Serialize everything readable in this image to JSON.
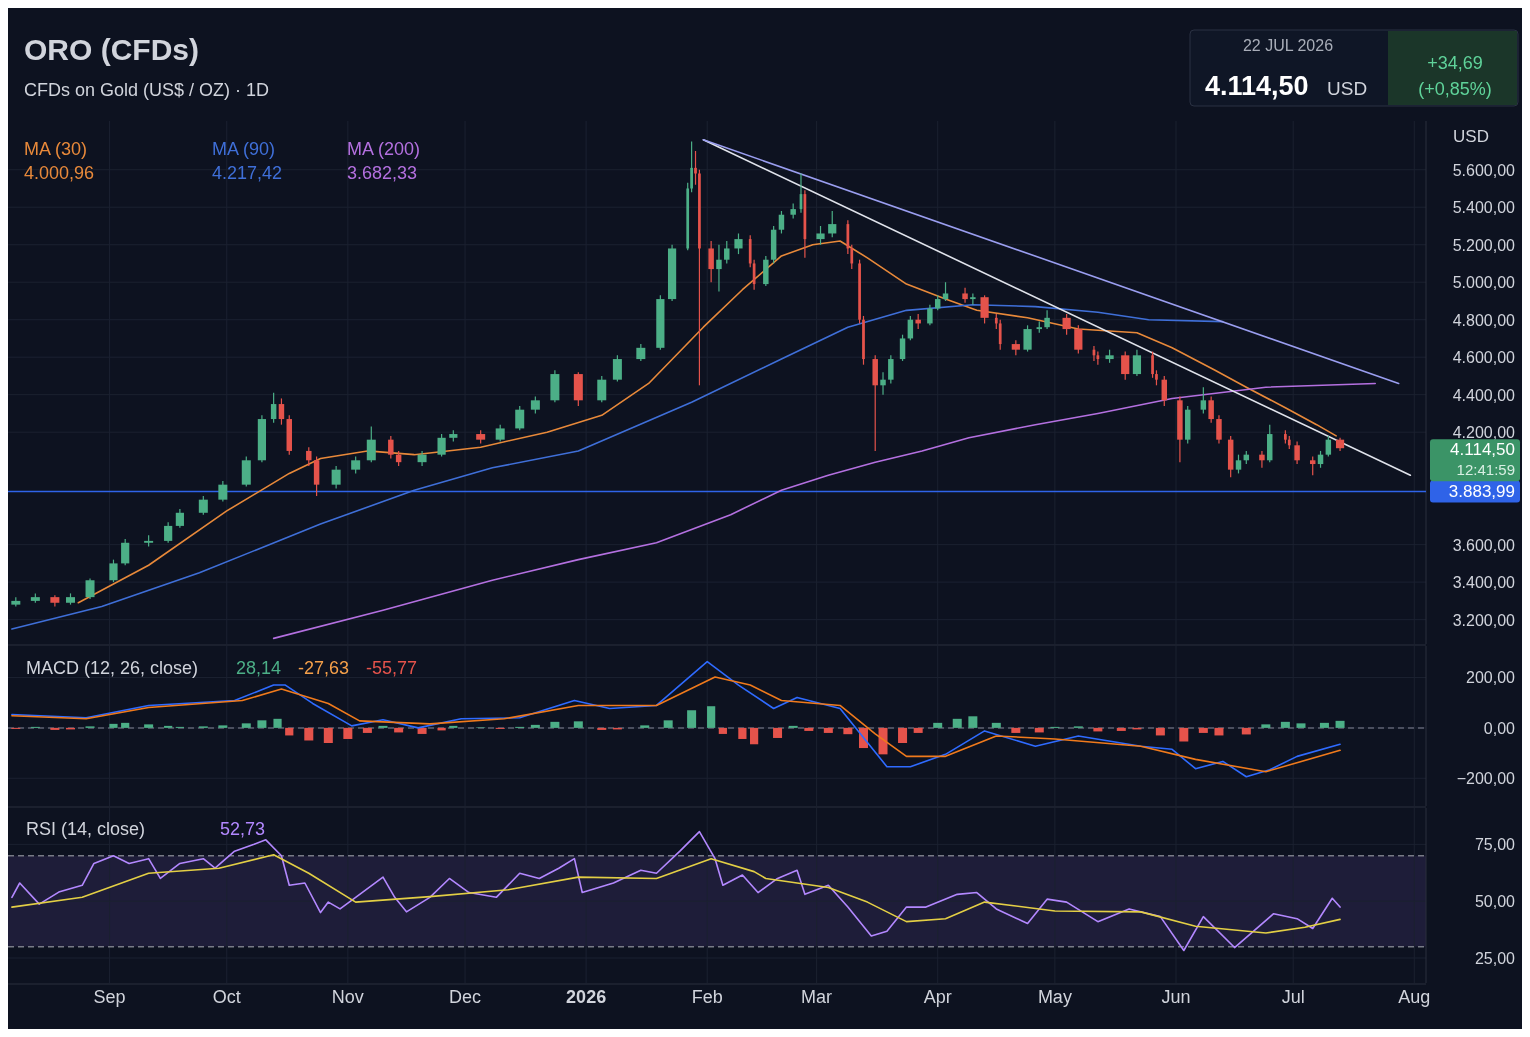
{
  "chart_data": [
    {
      "type": "candlestick",
      "title": "ORO (CFDs)",
      "subtitle": "CFDs on Gold (US$ / OZ) · 1D",
      "ylabel": "USD",
      "annotations": [
        "22 JUL 2026",
        "4.114,50",
        "USD",
        "+34,69",
        "(+0,85%)",
        "4.114,50",
        "12:41:59",
        "4.000,96",
        "4.217,42",
        "3.682,33"
      ],
      "xlim": [
        "2025-08-06",
        "2026-08-04"
      ],
      "xticks": [
        {
          "value": "2025-09-01",
          "label": null
        },
        {
          "value": "2025-10-01",
          "label": null
        },
        {
          "value": "2025-11-01",
          "label": null
        },
        {
          "value": "2025-12-01",
          "label": null
        },
        {
          "value": "2026-01-01",
          "label": null
        },
        {
          "value": "2026-02-01",
          "label": null
        },
        {
          "value": "2026-03-01",
          "label": null
        },
        {
          "value": "2026-04-01",
          "label": null
        },
        {
          "value": "2026-05-01",
          "label": null
        },
        {
          "value": "2026-06-01",
          "label": null
        },
        {
          "value": "2026-07-01",
          "label": null
        },
        {
          "value": "2026-08-01",
          "label": null
        }
      ],
      "ylim": [
        3070,
        5860
      ],
      "yticks": [
        {
          "value": 3200,
          "label": "3.200,00"
        },
        {
          "value": 3400,
          "label": "3.400,00"
        },
        {
          "value": 3600,
          "label": "3.600,00"
        },
        {
          "value": 4200,
          "label": "4.200,00"
        },
        {
          "value": 4400,
          "label": "4.400,00"
        },
        {
          "value": 4600,
          "label": "4.600,00"
        },
        {
          "value": 4800,
          "label": "4.800,00"
        },
        {
          "value": 5000,
          "label": "5.000,00"
        },
        {
          "value": 5200,
          "label": "5.200,00"
        },
        {
          "value": 5400,
          "label": "5.400,00"
        },
        {
          "value": 5600,
          "label": "5.600,00"
        }
      ],
      "tick_labels": "y",
      "grid": true,
      "legend": "top left",
      "ref_lines": [
        {
          "axis": "y",
          "value": 3883.99,
          "label": "3.883,99",
          "color": "#2f63e8"
        }
      ],
      "x": [
        "2025-08-08",
        "2025-08-13",
        "2025-08-18",
        "2025-08-22",
        "2025-08-27",
        "2025-09-02",
        "2025-09-05",
        "2025-09-11",
        "2025-09-16",
        "2025-09-19",
        "2025-09-25",
        "2025-09-30",
        "2025-10-06",
        "2025-10-10",
        "2025-10-13",
        "2025-10-15",
        "2025-10-17",
        "2025-10-22",
        "2025-10-24",
        "2025-10-29",
        "2025-11-03",
        "2025-11-07",
        "2025-11-12",
        "2025-11-14",
        "2025-11-20",
        "2025-11-25",
        "2025-11-28",
        "2025-12-05",
        "2025-12-10",
        "2025-12-15",
        "2025-12-19",
        "2025-12-24",
        "2025-12-30",
        "2026-01-05",
        "2026-01-09",
        "2026-01-15",
        "2026-01-20",
        "2026-01-23",
        "2026-01-27",
        "2026-01-28",
        "2026-01-29",
        "2026-01-30",
        "2026-02-02",
        "2026-02-04",
        "2026-02-06",
        "2026-02-09",
        "2026-02-12",
        "2026-02-13",
        "2026-02-16",
        "2026-02-18",
        "2026-02-20",
        "2026-02-23",
        "2026-02-25",
        "2026-02-26",
        "2026-03-02",
        "2026-03-05",
        "2026-03-09",
        "2026-03-10",
        "2026-03-12",
        "2026-03-13",
        "2026-03-16",
        "2026-03-18",
        "2026-03-20",
        "2026-03-23",
        "2026-03-25",
        "2026-03-27",
        "2026-03-30",
        "2026-04-01",
        "2026-04-03",
        "2026-04-08",
        "2026-04-10",
        "2026-04-13",
        "2026-04-16",
        "2026-04-17",
        "2026-04-21",
        "2026-04-24",
        "2026-04-27",
        "2026-04-29",
        "2026-05-04",
        "2026-05-07",
        "2026-05-11",
        "2026-05-12",
        "2026-05-15",
        "2026-05-19",
        "2026-05-22",
        "2026-05-26",
        "2026-05-27",
        "2026-05-29",
        "2026-06-02",
        "2026-06-04",
        "2026-06-08",
        "2026-06-10",
        "2026-06-12",
        "2026-06-15",
        "2026-06-17",
        "2026-06-19",
        "2026-06-23",
        "2026-06-25",
        "2026-06-29",
        "2026-06-30",
        "2026-07-02",
        "2026-07-06",
        "2026-07-08",
        "2026-07-10",
        "2026-07-13"
      ],
      "ohlc": [
        [
          3280,
          3320,
          3270,
          3300
        ],
        [
          3300,
          3340,
          3290,
          3320
        ],
        [
          3320,
          3330,
          3270,
          3290
        ],
        [
          3290,
          3340,
          3280,
          3320
        ],
        [
          3320,
          3420,
          3310,
          3410
        ],
        [
          3410,
          3520,
          3400,
          3500
        ],
        [
          3500,
          3630,
          3490,
          3610
        ],
        [
          3610,
          3650,
          3590,
          3620
        ],
        [
          3620,
          3720,
          3610,
          3700
        ],
        [
          3700,
          3790,
          3690,
          3770
        ],
        [
          3770,
          3860,
          3760,
          3840
        ],
        [
          3840,
          3940,
          3830,
          3920
        ],
        [
          3920,
          4070,
          3910,
          4050
        ],
        [
          4050,
          4290,
          4040,
          4270
        ],
        [
          4270,
          4410,
          4250,
          4350
        ],
        [
          4350,
          4380,
          4240,
          4270
        ],
        [
          4270,
          4290,
          4080,
          4100
        ],
        [
          4100,
          4120,
          4020,
          4050
        ],
        [
          4050,
          4070,
          3860,
          3920
        ],
        [
          3920,
          4020,
          3900,
          4000
        ],
        [
          4000,
          4070,
          3980,
          4050
        ],
        [
          4050,
          4230,
          4040,
          4160
        ],
        [
          4160,
          4180,
          4060,
          4080
        ],
        [
          4080,
          4100,
          4020,
          4040
        ],
        [
          4040,
          4100,
          4020,
          4080
        ],
        [
          4080,
          4190,
          4070,
          4170
        ],
        [
          4170,
          4210,
          4150,
          4190
        ],
        [
          4190,
          4210,
          4140,
          4160
        ],
        [
          4160,
          4240,
          4150,
          4220
        ],
        [
          4220,
          4340,
          4210,
          4320
        ],
        [
          4320,
          4390,
          4300,
          4370
        ],
        [
          4370,
          4530,
          4360,
          4510
        ],
        [
          4510,
          4520,
          4340,
          4370
        ],
        [
          4370,
          4500,
          4360,
          4480
        ],
        [
          4480,
          4610,
          4470,
          4590
        ],
        [
          4590,
          4670,
          4580,
          4650
        ],
        [
          4650,
          4930,
          4640,
          4910
        ],
        [
          4910,
          5200,
          4900,
          5180
        ],
        [
          5180,
          5530,
          5170,
          5500
        ],
        [
          5500,
          5750,
          5480,
          5610
        ],
        [
          5610,
          5700,
          5520,
          5580
        ],
        [
          5580,
          5600,
          4450,
          5180
        ],
        [
          5180,
          5220,
          5000,
          5070
        ],
        [
          5070,
          5200,
          4950,
          5120
        ],
        [
          5120,
          5220,
          5100,
          5180
        ],
        [
          5180,
          5260,
          5150,
          5230
        ],
        [
          5230,
          5250,
          5080,
          5100
        ],
        [
          5100,
          5120,
          4960,
          4990
        ],
        [
          4990,
          5140,
          4980,
          5120
        ],
        [
          5120,
          5300,
          5100,
          5280
        ],
        [
          5280,
          5380,
          5260,
          5360
        ],
        [
          5360,
          5420,
          5340,
          5390
        ],
        [
          5390,
          5580,
          5370,
          5470
        ],
        [
          5470,
          5490,
          5130,
          5230
        ],
        [
          5230,
          5300,
          5200,
          5260
        ],
        [
          5260,
          5380,
          5240,
          5310
        ],
        [
          5310,
          5330,
          5150,
          5180
        ],
        [
          5180,
          5200,
          5070,
          5100
        ],
        [
          5100,
          5120,
          4780,
          4800
        ],
        [
          4800,
          4820,
          4560,
          4590
        ],
        [
          4590,
          4610,
          4100,
          4450
        ],
        [
          4450,
          4520,
          4400,
          4480
        ],
        [
          4480,
          4610,
          4460,
          4590
        ],
        [
          4590,
          4720,
          4580,
          4700
        ],
        [
          4700,
          4820,
          4690,
          4800
        ],
        [
          4800,
          4830,
          4750,
          4780
        ],
        [
          4780,
          4880,
          4770,
          4860
        ],
        [
          4860,
          4930,
          4850,
          4910
        ],
        [
          4910,
          5000,
          4900,
          4940
        ],
        [
          4940,
          4970,
          4890,
          4910
        ],
        [
          4910,
          4940,
          4880,
          4920
        ],
        [
          4920,
          4930,
          4780,
          4810
        ],
        [
          4810,
          4830,
          4750,
          4780
        ],
        [
          4780,
          4800,
          4640,
          4670
        ],
        [
          4670,
          4690,
          4610,
          4640
        ],
        [
          4640,
          4770,
          4630,
          4750
        ],
        [
          4750,
          4790,
          4730,
          4760
        ],
        [
          4760,
          4850,
          4750,
          4810
        ],
        [
          4810,
          4830,
          4720,
          4750
        ],
        [
          4750,
          4770,
          4620,
          4640
        ],
        [
          4640,
          4660,
          4580,
          4610
        ],
        [
          4610,
          4630,
          4560,
          4590
        ],
        [
          4590,
          4640,
          4570,
          4610
        ],
        [
          4610,
          4630,
          4480,
          4510
        ],
        [
          4510,
          4640,
          4500,
          4610
        ],
        [
          4610,
          4630,
          4490,
          4510
        ],
        [
          4510,
          4530,
          4450,
          4480
        ],
        [
          4480,
          4500,
          4340,
          4370
        ],
        [
          4370,
          4390,
          4040,
          4160
        ],
        [
          4160,
          4340,
          4140,
          4320
        ],
        [
          4320,
          4440,
          4300,
          4370
        ],
        [
          4370,
          4390,
          4250,
          4270
        ],
        [
          4270,
          4290,
          4140,
          4160
        ],
        [
          4160,
          4180,
          3960,
          4000
        ],
        [
          4000,
          4080,
          3980,
          4050
        ],
        [
          4050,
          4100,
          4030,
          4080
        ],
        [
          4080,
          4100,
          4010,
          4050
        ],
        [
          4050,
          4240,
          4040,
          4190
        ],
        [
          4190,
          4210,
          4140,
          4160
        ],
        [
          4160,
          4180,
          4110,
          4130
        ],
        [
          4130,
          4150,
          4030,
          4050
        ],
        [
          4050,
          4070,
          3970,
          4030
        ],
        [
          4030,
          4100,
          4010,
          4080
        ],
        [
          4080,
          4180,
          4070,
          4160
        ],
        [
          4160,
          4170,
          4100,
          4114.5
        ]
      ],
      "colors": [
        "#4caf87",
        "#4caf87",
        "#e5534b",
        "#4caf87",
        "#4caf87",
        "#4caf87",
        "#4caf87",
        "#4caf87",
        "#4caf87",
        "#4caf87",
        "#4caf87",
        "#4caf87",
        "#4caf87",
        "#4caf87",
        "#4caf87",
        "#e5534b",
        "#e5534b",
        "#e5534b",
        "#e5534b",
        "#4caf87",
        "#4caf87",
        "#4caf87",
        "#e5534b",
        "#e5534b",
        "#4caf87",
        "#4caf87",
        "#4caf87",
        "#e5534b",
        "#4caf87",
        "#4caf87",
        "#4caf87",
        "#4caf87",
        "#e5534b",
        "#4caf87",
        "#4caf87",
        "#4caf87",
        "#4caf87",
        "#4caf87",
        "#4caf87",
        "#4caf87",
        "#e5534b",
        "#e5534b",
        "#e5534b",
        "#4caf87",
        "#4caf87",
        "#4caf87",
        "#e5534b",
        "#e5534b",
        "#4caf87",
        "#4caf87",
        "#4caf87",
        "#4caf87",
        "#4caf87",
        "#e5534b",
        "#4caf87",
        "#4caf87",
        "#e5534b",
        "#e5534b",
        "#e5534b",
        "#e5534b",
        "#e5534b",
        "#4caf87",
        "#4caf87",
        "#4caf87",
        "#4caf87",
        "#e5534b",
        "#4caf87",
        "#4caf87",
        "#4caf87",
        "#e5534b",
        "#4caf87",
        "#e5534b",
        "#e5534b",
        "#e5534b",
        "#e5534b",
        "#4caf87",
        "#4caf87",
        "#4caf87",
        "#e5534b",
        "#e5534b",
        "#e5534b",
        "#e5534b",
        "#4caf87",
        "#e5534b",
        "#4caf87",
        "#e5534b",
        "#e5534b",
        "#e5534b",
        "#e5534b",
        "#4caf87",
        "#4caf87",
        "#e5534b",
        "#e5534b",
        "#e5534b",
        "#4caf87",
        "#4caf87",
        "#e5534b",
        "#4caf87",
        "#e5534b",
        "#e5534b",
        "#e5534b",
        "#e5534b",
        "#4caf87",
        "#4caf87",
        "#e5534b"
      ],
      "series": [
        {
          "type": "line",
          "name": "MA (30)",
          "color": "#e8893a",
          "x": [
            "2025-08-24",
            "2025-09-11",
            "2025-10-01",
            "2025-10-17",
            "2025-10-25",
            "2025-11-06",
            "2025-11-18",
            "2025-12-05",
            "2025-12-22",
            "2026-01-05",
            "2026-01-17",
            "2026-01-31",
            "2026-02-10",
            "2026-02-20",
            "2026-02-28",
            "2026-03-07",
            "2026-03-14",
            "2026-03-24",
            "2026-04-03",
            "2026-04-11",
            "2026-04-24",
            "2026-05-07",
            "2026-05-22",
            "2026-05-31",
            "2026-06-11",
            "2026-06-19",
            "2026-06-29",
            "2026-07-07",
            "2026-07-12"
          ],
          "values": [
            3290,
            3490,
            3780,
            3980,
            4060,
            4100,
            4080,
            4120,
            4200,
            4290,
            4460,
            4760,
            4960,
            5140,
            5200,
            5220,
            5130,
            4990,
            4910,
            4850,
            4810,
            4750,
            4730,
            4650,
            4530,
            4440,
            4330,
            4240,
            4180
          ]
        },
        {
          "type": "line",
          "name": "MA (90)",
          "color": "#3f6fd8",
          "x": [
            "2025-08-07",
            "2025-08-30",
            "2025-09-24",
            "2025-10-25",
            "2025-11-18",
            "2025-12-08",
            "2025-12-30",
            "2026-01-28",
            "2026-02-20",
            "2026-03-09",
            "2026-03-24",
            "2026-04-10",
            "2026-04-26",
            "2026-05-12",
            "2026-05-25",
            "2026-06-13"
          ],
          "values": [
            3150,
            3270,
            3450,
            3710,
            3890,
            4010,
            4100,
            4360,
            4590,
            4760,
            4850,
            4880,
            4870,
            4840,
            4800,
            4790
          ]
        },
        {
          "type": "line",
          "name": "MA (200)",
          "color": "#b470e0",
          "x": [
            "2025-10-13",
            "2025-11-10",
            "2025-12-08",
            "2025-12-30",
            "2026-01-19",
            "2026-02-07",
            "2026-02-20",
            "2026-03-04",
            "2026-03-16",
            "2026-03-28",
            "2026-04-09",
            "2026-04-26",
            "2026-05-12",
            "2026-05-31",
            "2026-06-24",
            "2026-07-22"
          ],
          "values": [
            3100,
            3250,
            3410,
            3520,
            3610,
            3760,
            3890,
            3970,
            4040,
            4100,
            4170,
            4240,
            4300,
            4380,
            4440,
            4460
          ]
        },
        {
          "type": "line",
          "color": "#e0e3eb",
          "x": [
            "2026-01-31",
            "2026-07-31"
          ],
          "values": [
            5760,
            3970
          ]
        },
        {
          "type": "line",
          "color": "#9a9ef0",
          "x": [
            "2026-01-31",
            "2026-07-28"
          ],
          "values": [
            5760,
            4460
          ]
        }
      ]
    },
    {
      "type": "line",
      "title": "MACD (12, 26, close)",
      "annotations": [
        "28,14",
        "-27,63",
        "-55,77"
      ],
      "xlim": [
        "2025-08-06",
        "2026-08-04"
      ],
      "xticks": [
        {
          "value": "2025-09-01",
          "label": null
        },
        {
          "value": "2025-10-01",
          "label": null
        },
        {
          "value": "2025-11-01",
          "label": null
        },
        {
          "value": "2025-12-01",
          "label": null
        },
        {
          "value": "2026-01-01",
          "label": null
        },
        {
          "value": "2026-02-01",
          "label": null
        },
        {
          "value": "2026-03-01",
          "label": null
        },
        {
          "value": "2026-04-01",
          "label": null
        },
        {
          "value": "2026-05-01",
          "label": null
        },
        {
          "value": "2026-06-01",
          "label": null
        },
        {
          "value": "2026-07-01",
          "label": null
        },
        {
          "value": "2026-08-01",
          "label": null
        }
      ],
      "ylim": [
        -310,
        325
      ],
      "yticks": [
        {
          "value": -200,
          "label": "−200,00"
        },
        {
          "value": 0,
          "label": "0,00"
        },
        {
          "value": 200,
          "label": "200,00"
        }
      ],
      "tick_labels": "y",
      "grid": true,
      "ref_lines": [
        {
          "axis": "y",
          "value": 0,
          "color": "#5d6272",
          "line_style": "dashed"
        }
      ],
      "series": [
        {
          "type": "bar",
          "x": [
            "2025-08-08",
            "2025-08-13",
            "2025-08-18",
            "2025-08-22",
            "2025-08-27",
            "2025-09-02",
            "2025-09-05",
            "2025-09-11",
            "2025-09-16",
            "2025-09-19",
            "2025-09-25",
            "2025-09-30",
            "2025-10-06",
            "2025-10-10",
            "2025-10-14",
            "2025-10-17",
            "2025-10-22",
            "2025-10-27",
            "2025-11-01",
            "2025-11-06",
            "2025-11-10",
            "2025-11-14",
            "2025-11-20",
            "2025-11-25",
            "2025-11-28",
            "2025-12-05",
            "2025-12-10",
            "2025-12-15",
            "2025-12-19",
            "2025-12-24",
            "2025-12-30",
            "2026-01-05",
            "2026-01-09",
            "2026-01-16",
            "2026-01-22",
            "2026-01-28",
            "2026-02-02",
            "2026-02-05",
            "2026-02-10",
            "2026-02-13",
            "2026-02-19",
            "2026-02-23",
            "2026-02-27",
            "2026-03-04",
            "2026-03-09",
            "2026-03-13",
            "2026-03-18",
            "2026-03-23",
            "2026-03-27",
            "2026-04-01",
            "2026-04-06",
            "2026-04-10",
            "2026-04-16",
            "2026-04-21",
            "2026-04-27",
            "2026-05-01",
            "2026-05-07",
            "2026-05-12",
            "2026-05-18",
            "2026-05-22",
            "2026-05-28",
            "2026-06-03",
            "2026-06-08",
            "2026-06-12",
            "2026-06-19",
            "2026-06-24",
            "2026-06-29",
            "2026-07-03",
            "2026-07-09",
            "2026-07-13"
          ],
          "values": [
            -4,
            4,
            -8,
            -6,
            6,
            16,
            20,
            14,
            8,
            4,
            6,
            10,
            18,
            30,
            36,
            -30,
            -50,
            -60,
            -44,
            -20,
            8,
            -18,
            -24,
            -10,
            8,
            2,
            -4,
            4,
            12,
            24,
            26,
            -8,
            -6,
            10,
            30,
            70,
            86,
            -24,
            -44,
            -65,
            -40,
            8,
            -12,
            -20,
            -25,
            -80,
            -105,
            -60,
            -20,
            20,
            36,
            46,
            20,
            -20,
            -18,
            4,
            6,
            -14,
            -12,
            -6,
            -30,
            -54,
            -20,
            -30,
            -26,
            14,
            24,
            18,
            20,
            28
          ],
          "colors": [
            "#e5534b",
            "#4caf87",
            "#e5534b",
            "#e5534b",
            "#4caf87",
            "#4caf87",
            "#4caf87",
            "#4caf87",
            "#4caf87",
            "#4caf87",
            "#4caf87",
            "#4caf87",
            "#4caf87",
            "#4caf87",
            "#4caf87",
            "#e5534b",
            "#e5534b",
            "#e5534b",
            "#e5534b",
            "#e5534b",
            "#4caf87",
            "#e5534b",
            "#e5534b",
            "#e5534b",
            "#4caf87",
            "#4caf87",
            "#e5534b",
            "#4caf87",
            "#4caf87",
            "#4caf87",
            "#4caf87",
            "#e5534b",
            "#e5534b",
            "#4caf87",
            "#4caf87",
            "#4caf87",
            "#4caf87",
            "#e5534b",
            "#e5534b",
            "#e5534b",
            "#e5534b",
            "#4caf87",
            "#e5534b",
            "#e5534b",
            "#e5534b",
            "#e5534b",
            "#e5534b",
            "#e5534b",
            "#e5534b",
            "#4caf87",
            "#4caf87",
            "#4caf87",
            "#4caf87",
            "#e5534b",
            "#e5534b",
            "#4caf87",
            "#4caf87",
            "#e5534b",
            "#e5534b",
            "#e5534b",
            "#e5534b",
            "#e5534b",
            "#e5534b",
            "#e5534b",
            "#e5534b",
            "#4caf87",
            "#4caf87",
            "#4caf87",
            "#4caf87",
            "#4caf87"
          ]
        },
        {
          "type": "line",
          "color": "#2f6bff",
          "x": [
            "2025-08-07",
            "2025-08-26",
            "2025-09-11",
            "2025-10-03",
            "2025-10-13",
            "2025-10-16",
            "2025-10-23",
            "2025-11-02",
            "2025-11-10",
            "2025-11-19",
            "2025-11-30",
            "2025-12-15",
            "2025-12-29",
            "2026-01-07",
            "2026-01-19",
            "2026-02-01",
            "2026-02-09",
            "2026-02-18",
            "2026-02-24",
            "2026-03-07",
            "2026-03-19",
            "2026-03-25",
            "2026-04-03",
            "2026-04-13",
            "2026-04-26",
            "2026-05-07",
            "2026-05-23",
            "2026-05-31",
            "2026-06-06",
            "2026-06-13",
            "2026-06-19",
            "2026-06-25",
            "2026-07-02",
            "2026-07-13"
          ],
          "values": [
            53,
            40,
            89,
            109,
            170,
            170,
            97,
            8,
            32,
            0,
            36,
            40,
            109,
            77,
            89,
            263,
            170,
            77,
            121,
            77,
            -154,
            -154,
            -105,
            -12,
            -73,
            -32,
            -73,
            -85,
            -162,
            -133,
            -194,
            -166,
            -113,
            -65
          ]
        },
        {
          "type": "line",
          "color": "#f07a1c",
          "x": [
            "2025-08-07",
            "2025-08-26",
            "2025-09-11",
            "2025-10-05",
            "2025-10-15",
            "2025-10-27",
            "2025-11-04",
            "2025-11-22",
            "2025-12-11",
            "2025-12-30",
            "2026-01-19",
            "2026-02-03",
            "2026-02-12",
            "2026-02-20",
            "2026-03-07",
            "2026-03-16",
            "2026-03-24",
            "2026-04-03",
            "2026-04-16",
            "2026-05-01",
            "2026-05-23",
            "2026-06-06",
            "2026-06-24",
            "2026-07-13"
          ],
          "values": [
            48,
            36,
            81,
            109,
            154,
            97,
            28,
            16,
            36,
            89,
            89,
            202,
            170,
            109,
            89,
            -24,
            -113,
            -113,
            -32,
            -44,
            -73,
            -125,
            -174,
            -89
          ]
        }
      ]
    },
    {
      "type": "line",
      "title": "RSI (14, close)",
      "annotations": [
        "52,73"
      ],
      "xlim": [
        "2025-08-06",
        "2026-08-04"
      ],
      "xticks": [
        {
          "value": "2025-09-01",
          "label": "Sep"
        },
        {
          "value": "2025-10-01",
          "label": "Oct"
        },
        {
          "value": "2025-11-01",
          "label": "Nov"
        },
        {
          "value": "2025-12-01",
          "label": "Dec"
        },
        {
          "value": "2026-01-01",
          "label": "2026"
        },
        {
          "value": "2026-02-01",
          "label": "Feb"
        },
        {
          "value": "2026-03-01",
          "label": "Mar"
        },
        {
          "value": "2026-04-01",
          "label": "Apr"
        },
        {
          "value": "2026-05-01",
          "label": "May"
        },
        {
          "value": "2026-06-01",
          "label": "Jun"
        },
        {
          "value": "2026-07-01",
          "label": "Jul"
        },
        {
          "value": "2026-08-01",
          "label": "Aug"
        }
      ],
      "ylim": [
        14,
        91
      ],
      "yticks": [
        {
          "value": 25,
          "label": "25,00"
        },
        {
          "value": 50,
          "label": "50,00"
        },
        {
          "value": 75,
          "label": "75,00"
        }
      ],
      "grid": true,
      "bands": [
        {
          "axis": "y",
          "from": 30,
          "to": 70,
          "color": "#7e57c2"
        }
      ],
      "ref_lines": [
        {
          "axis": "y",
          "value": 70,
          "color": "#787b86",
          "line_style": "dashed"
        },
        {
          "axis": "y",
          "value": 30,
          "color": "#787b86",
          "line_style": "dashed"
        }
      ],
      "series": [
        {
          "type": "line",
          "color": "#b388ff",
          "x": [
            "2025-08-07",
            "2025-08-09",
            "2025-08-14",
            "2025-08-19",
            "2025-08-25",
            "2025-08-28",
            "2025-09-02",
            "2025-09-06",
            "2025-09-11",
            "2025-09-14",
            "2025-09-19",
            "2025-09-25",
            "2025-09-28",
            "2025-10-03",
            "2025-10-08",
            "2025-10-11",
            "2025-10-15",
            "2025-10-17",
            "2025-10-21",
            "2025-10-25",
            "2025-10-27",
            "2025-10-30",
            "2025-11-03",
            "2025-11-10",
            "2025-11-13",
            "2025-11-16",
            "2025-11-22",
            "2025-11-27",
            "2025-12-02",
            "2025-12-09",
            "2025-12-15",
            "2025-12-20",
            "2025-12-25",
            "2025-12-29",
            "2025-12-31",
            "2026-01-08",
            "2026-01-15",
            "2026-01-19",
            "2026-01-25",
            "2026-01-30",
            "2026-02-03",
            "2026-02-05",
            "2026-02-10",
            "2026-02-14",
            "2026-02-19",
            "2026-02-24",
            "2026-02-26",
            "2026-03-04",
            "2026-03-09",
            "2026-03-15",
            "2026-03-19",
            "2026-03-24",
            "2026-03-29",
            "2026-04-06",
            "2026-04-11",
            "2026-04-16",
            "2026-04-24",
            "2026-04-29",
            "2026-05-04",
            "2026-05-12",
            "2026-05-20",
            "2026-05-28",
            "2026-06-03",
            "2026-06-08",
            "2026-06-16",
            "2026-06-26",
            "2026-07-02",
            "2026-07-06",
            "2026-07-11",
            "2026-07-13"
          ],
          "values": [
            51.7,
            58,
            48.7,
            54,
            57,
            66.6,
            70,
            66.6,
            68.7,
            60,
            66.6,
            68.7,
            64.5,
            72,
            75,
            77,
            70,
            57,
            58,
            45,
            49.6,
            46.6,
            51.7,
            60.6,
            51.7,
            45.3,
            51.7,
            60,
            53.8,
            51.7,
            62.3,
            60,
            64.5,
            68.7,
            53.8,
            58,
            63.6,
            62.3,
            72,
            80.6,
            68.7,
            57,
            61.5,
            53.8,
            60,
            63.6,
            53,
            57,
            47.4,
            34.7,
            36.8,
            47.4,
            47.4,
            53,
            53.8,
            46.6,
            40.2,
            50.9,
            49.6,
            41,
            46.6,
            43.2,
            28.3,
            43.2,
            29.6,
            44.5,
            42.3,
            38,
            51.3,
            47.4
          ]
        },
        {
          "type": "line",
          "color": "#e3cf45",
          "x": [
            "2025-08-07",
            "2025-08-25",
            "2025-09-11",
            "2025-09-29",
            "2025-10-13",
            "2025-10-22",
            "2025-11-03",
            "2025-11-22",
            "2025-12-12",
            "2025-12-30",
            "2026-01-19",
            "2026-02-02",
            "2026-02-13",
            "2026-02-16",
            "2026-03-04",
            "2026-03-14",
            "2026-03-24",
            "2026-04-03",
            "2026-04-13",
            "2026-05-01",
            "2026-05-23",
            "2026-06-06",
            "2026-06-24",
            "2026-07-04",
            "2026-07-13"
          ],
          "values": [
            47.4,
            51.7,
            62.3,
            64.5,
            70.4,
            62.3,
            49.6,
            52,
            55,
            60.6,
            60,
            68.7,
            63,
            60,
            56,
            49.6,
            41,
            42.3,
            49.6,
            45.7,
            45.3,
            39,
            36,
            38.5,
            42
          ]
        }
      ]
    }
  ]
}
